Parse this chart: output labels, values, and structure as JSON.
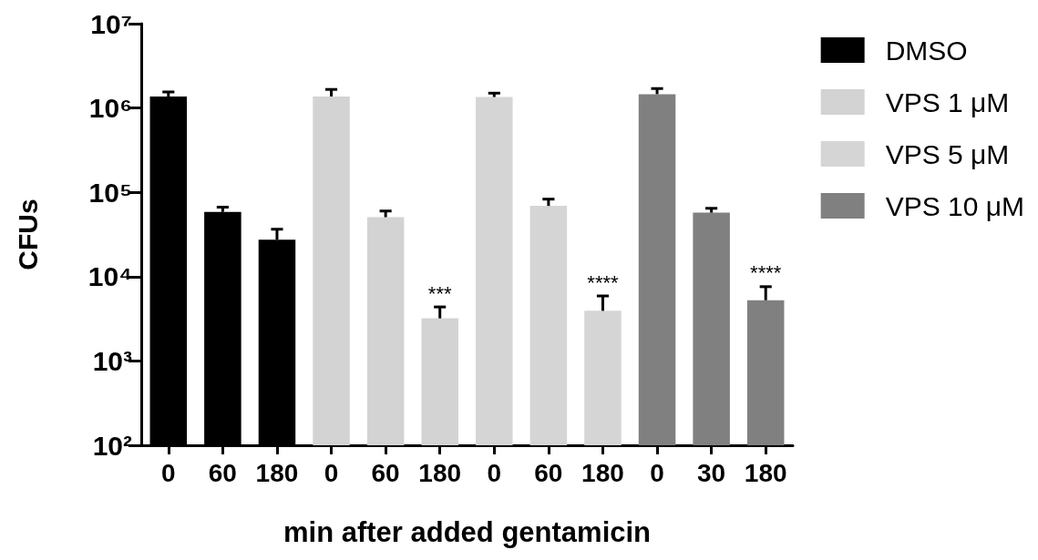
{
  "chart_data": {
    "type": "bar",
    "xlabel": "min after added gentamicin",
    "ylabel": "CFUs",
    "categories": [
      "0",
      "60",
      "180",
      "0",
      "60",
      "180",
      "0",
      "60",
      "180",
      "0",
      "30",
      "180"
    ],
    "series": [
      {
        "name": "DMSO",
        "color": "#000000",
        "values": [
          1370000,
          58500,
          27400,
          null,
          null,
          null,
          null,
          null,
          null,
          null,
          null,
          null
        ],
        "errors": [
          [
            1370000,
            1550000
          ],
          [
            58500,
            66700
          ],
          [
            27400,
            36500
          ],
          null,
          null,
          null,
          null,
          null,
          null,
          null,
          null,
          null
        ],
        "value_labels": [
          null,
          null,
          null,
          null,
          null,
          null,
          null,
          null,
          null,
          null,
          null,
          null
        ]
      },
      {
        "name": "VPS 1 μM",
        "color": "#d3d3d3",
        "values": [
          null,
          null,
          null,
          1370000,
          50700,
          3200,
          null,
          null,
          null,
          null,
          null,
          null
        ],
        "errors": [
          null,
          null,
          null,
          [
            1370000,
            1660000
          ],
          [
            50700,
            60000
          ],
          [
            3200,
            4370
          ],
          null,
          null,
          null,
          null,
          null,
          null
        ],
        "value_labels": [
          null,
          null,
          null,
          null,
          null,
          "***",
          null,
          null,
          null,
          null,
          null,
          null
        ]
      },
      {
        "name": "VPS 5 μM",
        "color": "#d5d5d5",
        "values": [
          null,
          null,
          null,
          null,
          null,
          null,
          1350000,
          69000,
          3930,
          null,
          null,
          null
        ],
        "errors": [
          null,
          null,
          null,
          null,
          null,
          null,
          [
            1350000,
            1500000
          ],
          [
            69000,
            83000
          ],
          [
            3930,
            5900
          ],
          null,
          null,
          null
        ],
        "value_labels": [
          null,
          null,
          null,
          null,
          null,
          null,
          null,
          null,
          "****",
          null,
          null,
          null
        ]
      },
      {
        "name": "VPS 10 μM",
        "color": "#808080",
        "values": [
          null,
          null,
          null,
          null,
          null,
          null,
          null,
          null,
          null,
          1460000,
          57400,
          5250
        ],
        "errors": [
          null,
          null,
          null,
          null,
          null,
          null,
          null,
          null,
          null,
          [
            1460000,
            1700000
          ],
          [
            57400,
            64600
          ],
          [
            5250,
            7600
          ]
        ],
        "value_labels": [
          null,
          null,
          null,
          null,
          null,
          null,
          null,
          null,
          null,
          null,
          null,
          "****"
        ]
      }
    ],
    "log": "y",
    "ylim": [
      100,
      10000000
    ],
    "yticks": [
      {
        "value": 100,
        "label": "10²"
      },
      {
        "value": 1000,
        "label": "10³"
      },
      {
        "value": 10000,
        "label": "10⁴"
      },
      {
        "value": 100000,
        "label": "10⁵"
      },
      {
        "value": 1000000,
        "label": "10⁶"
      },
      {
        "value": 10000000,
        "label": "10⁷"
      }
    ],
    "grid": false,
    "legend": "right"
  }
}
